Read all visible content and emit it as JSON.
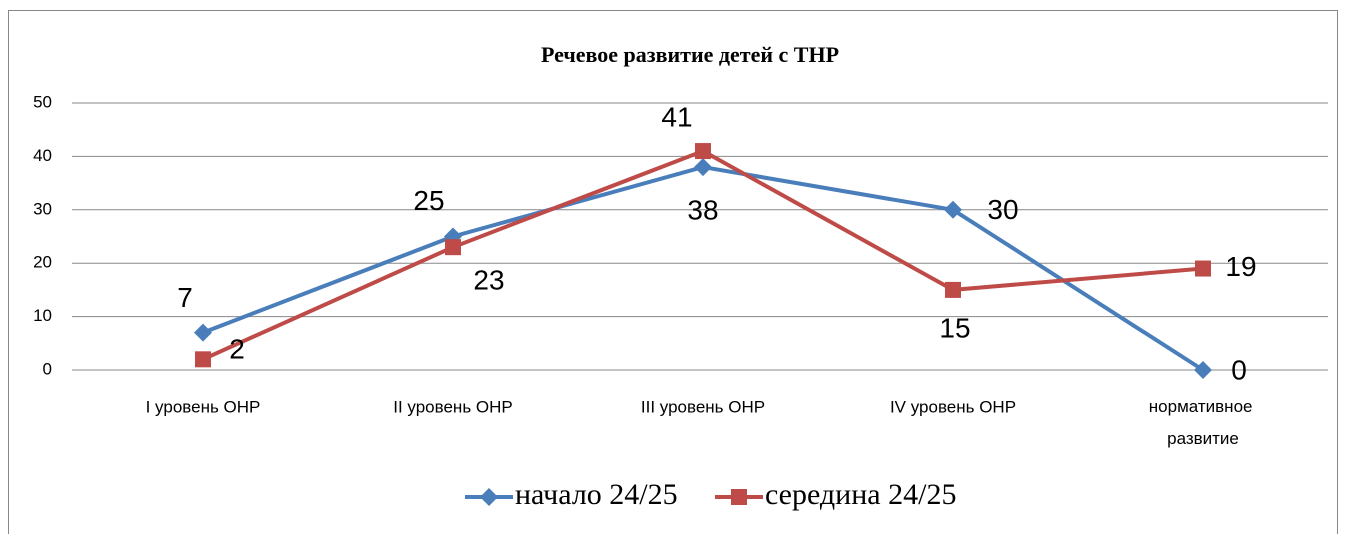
{
  "chart_data": {
    "type": "line",
    "title": "Речевое развитие детей с ТНР",
    "categories": [
      "I уровень ОНР",
      "II уровень ОНР",
      "III уровень ОНР",
      "IV уровень ОНР",
      "нормативное развитие"
    ],
    "series": [
      {
        "name": "начало 24/25",
        "color": "#4a7ebb",
        "marker": "diamond",
        "values": [
          7,
          25,
          38,
          30,
          0
        ]
      },
      {
        "name": "середина 24/25",
        "color": "#be4b48",
        "marker": "square",
        "values": [
          2,
          23,
          41,
          15,
          19
        ]
      }
    ],
    "ylim": [
      0,
      50
    ],
    "yticks": [
      0,
      10,
      20,
      30,
      40,
      50
    ],
    "grid": true,
    "legend": "bottom"
  }
}
